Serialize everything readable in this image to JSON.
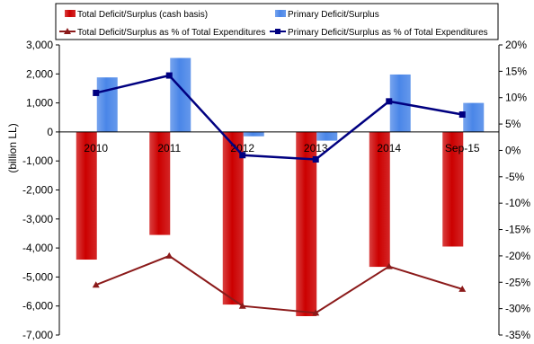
{
  "chart_data": {
    "type": "bar",
    "categories": [
      "2010",
      "2011",
      "2012",
      "2013",
      "2014",
      "Sep-15"
    ],
    "y_left": {
      "label": "(billion LL)",
      "range": [
        -7000,
        3000
      ],
      "step": 1000,
      "tick_labels": [
        "3,000",
        "2,000",
        "1,000",
        "0",
        "-1,000",
        "-2,000",
        "-3,000",
        "-4,000",
        "-5,000",
        "-6,000",
        "-7,000"
      ]
    },
    "y_right": {
      "label": "",
      "range": [
        -35,
        20
      ],
      "step": 5,
      "tick_labels": [
        "20%",
        "15%",
        "10%",
        "5%",
        "0%",
        "-5%",
        "-10%",
        "-15%",
        "-20%",
        "-25%",
        "-30%",
        "-35%"
      ]
    },
    "bar_series": [
      {
        "name": "Total Deficit/Surplus (cash basis)",
        "color": "#cc0000",
        "values": [
          -4400,
          -3550,
          -5950,
          -6350,
          -4650,
          -3950
        ]
      },
      {
        "name": "Primary Deficit/Surplus",
        "color": "#4a86e8",
        "values": [
          1880,
          2550,
          -150,
          -300,
          1980,
          1000
        ]
      }
    ],
    "line_series": [
      {
        "name": "Total Deficit/Surplus as % of Total Expenditures",
        "color": "#8b1a1a",
        "marker": "triangle",
        "values": [
          -25.5,
          -20.0,
          -29.5,
          -30.8,
          -22.0,
          -26.3
        ]
      },
      {
        "name": "Primary Deficit/Surplus as % of Total Expenditures",
        "color": "#000080",
        "marker": "square",
        "values": [
          10.9,
          14.2,
          -0.9,
          -1.7,
          9.3,
          6.8
        ]
      }
    ],
    "grid": false,
    "legend_position": "top"
  }
}
